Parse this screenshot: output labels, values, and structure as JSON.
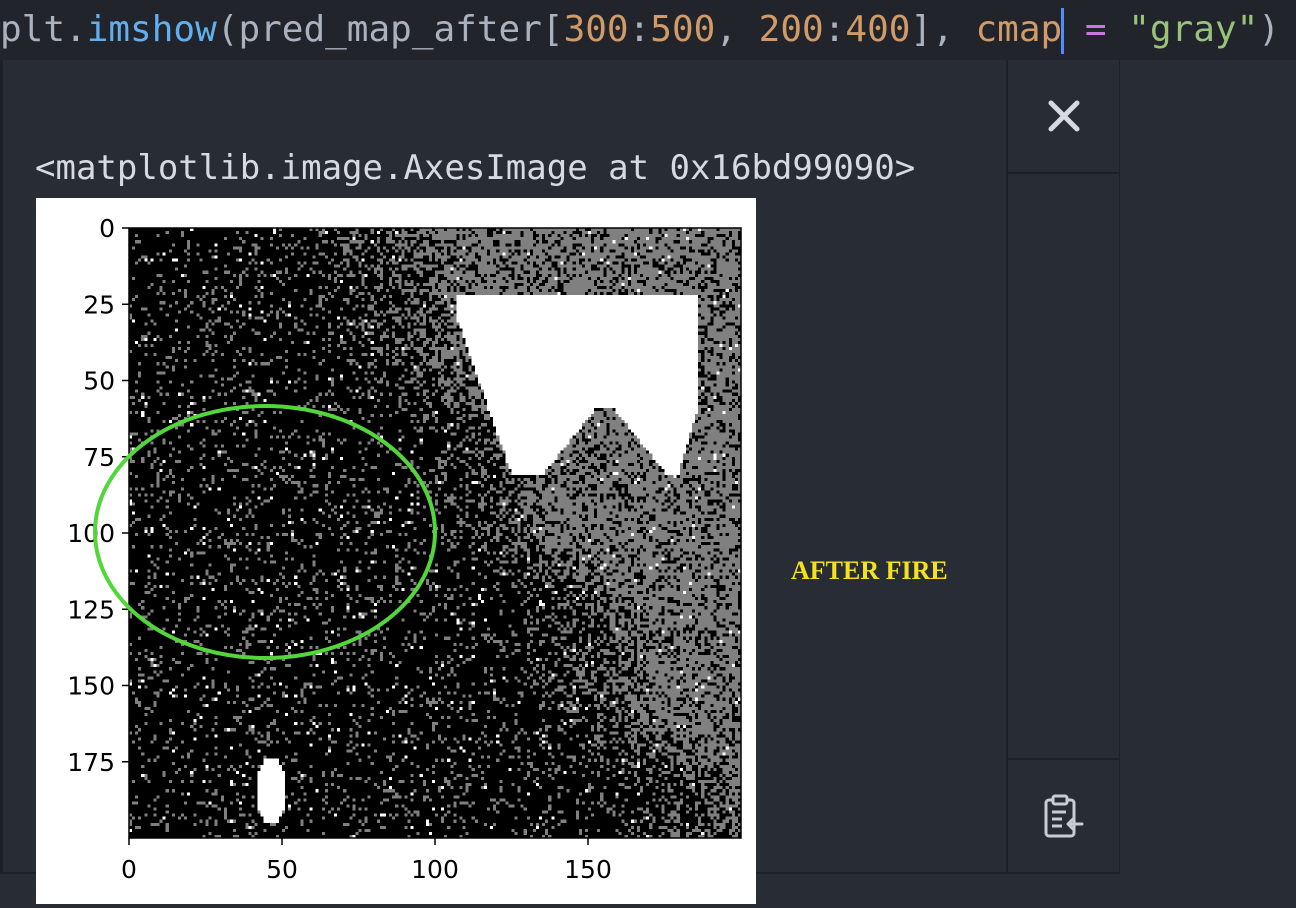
{
  "code": {
    "prefix": "plt.",
    "func": "imshow",
    "open_paren": "(",
    "var": "pred_map_after",
    "bracket_open": "[",
    "row_start": "300",
    "colon1": ":",
    "row_end": "500",
    "comma1": ", ",
    "col_start": "200",
    "colon2": ":",
    "col_end": "400",
    "bracket_close": "]",
    "comma2": ", ",
    "kwarg": "cmap",
    "equals": " = ",
    "string": "\"gray\"",
    "close_paren": ")"
  },
  "output": {
    "result_text": "<matplotlib.image.AxesImage at 0x16bd99090>"
  },
  "annotation": {
    "label": "AFTER FIRE",
    "label_color": "#f5e11f",
    "ellipse_color": "#52d63a"
  },
  "toolbar": {
    "close_icon": "close-icon",
    "copy_icon": "clipboard-icon"
  },
  "chart_data": {
    "type": "heatmap",
    "colormap": "gray",
    "shape": [
      200,
      200
    ],
    "xticks": [
      "0",
      "50",
      "100",
      "150"
    ],
    "yticks": [
      "0",
      "25",
      "50",
      "75",
      "100",
      "125",
      "150",
      "175"
    ],
    "xlim": [
      0,
      200
    ],
    "ylim": [
      200,
      0
    ],
    "grid": false,
    "regions": [
      {
        "description": "dark burned area with scattered gray speckle",
        "color": "black"
      },
      {
        "description": "gray speckled region to the upper right",
        "color": "gray"
      },
      {
        "description": "white patch near top right",
        "color": "white"
      },
      {
        "description": "small white patch near bottom left",
        "color": "white"
      }
    ]
  }
}
